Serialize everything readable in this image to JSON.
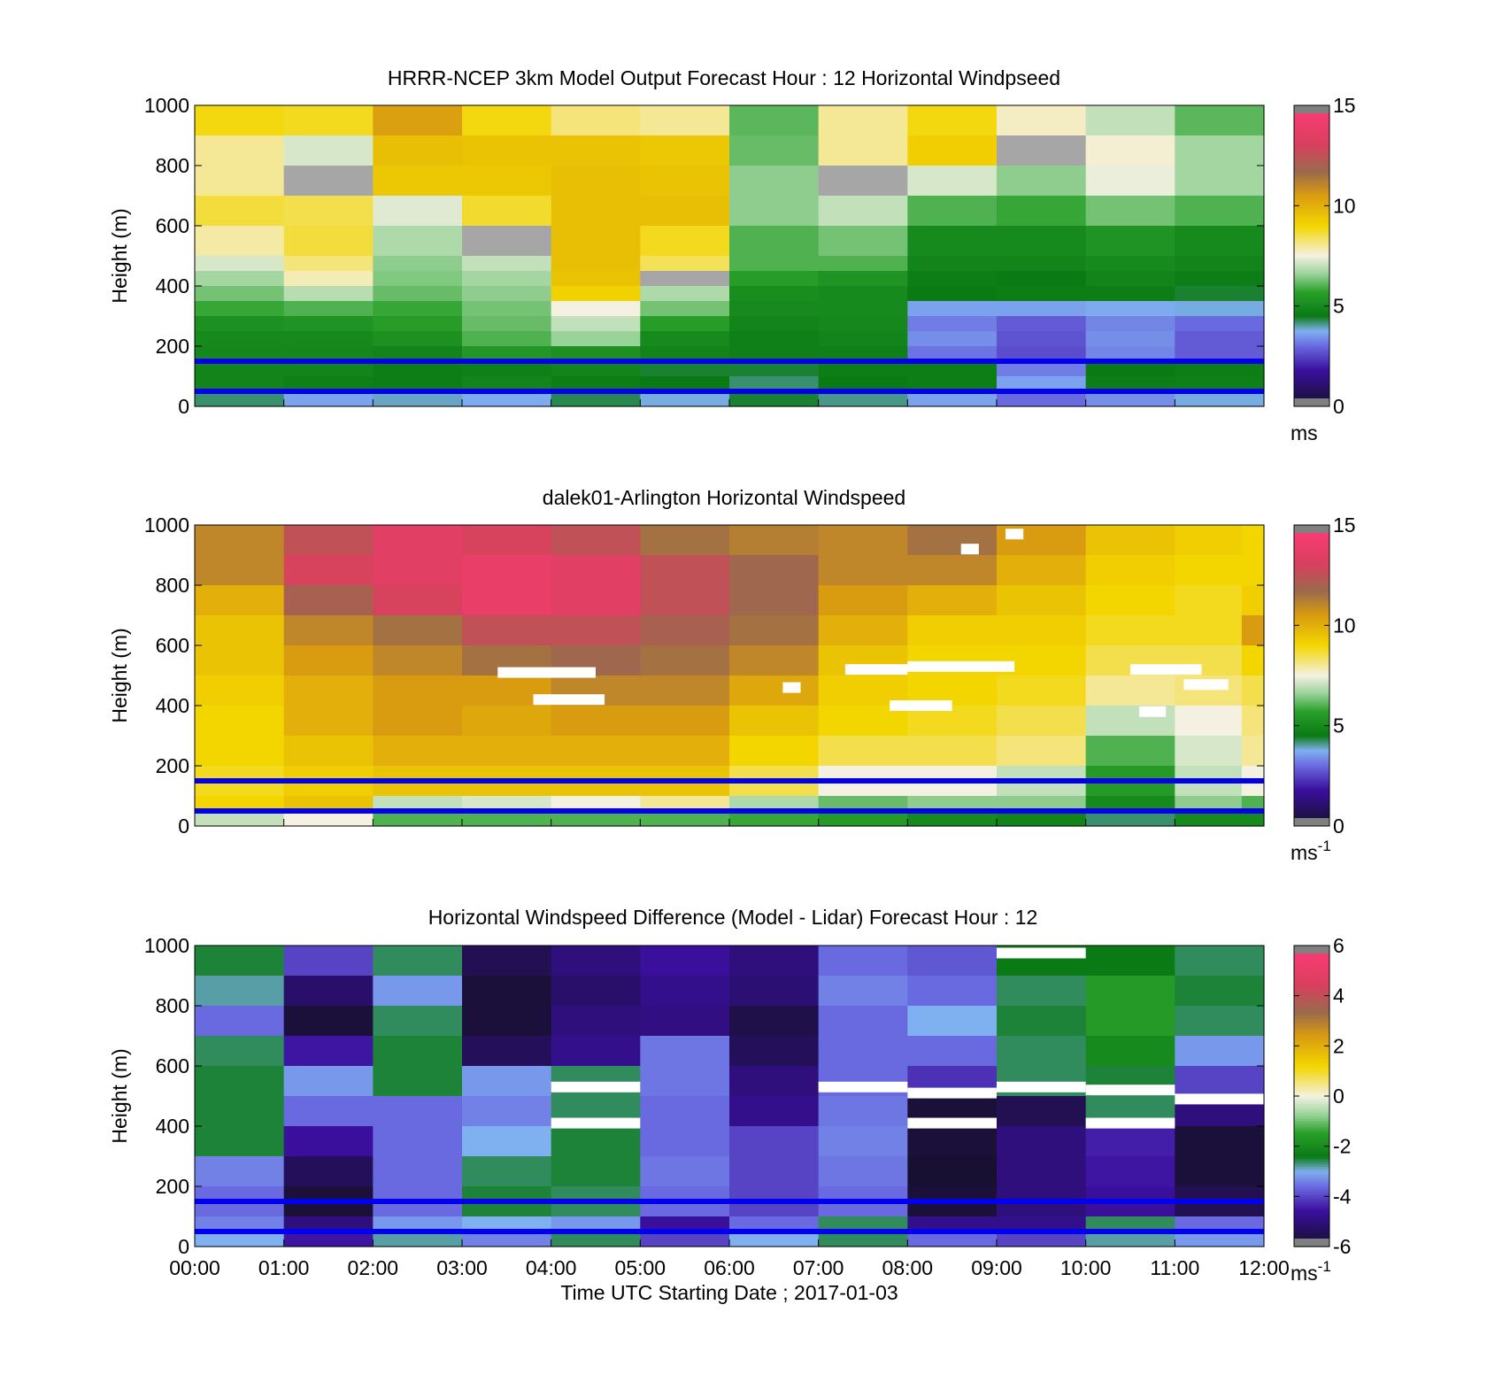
{
  "chart_data": [
    {
      "type": "heatmap",
      "title": "HRRR-NCEP 3km Model Output   Forecast Hour : 12 Horizontal Windpseed",
      "ylabel": "Height (m)",
      "xlabel": "",
      "xlim": [
        0,
        12
      ],
      "ylim": [
        0,
        1000
      ],
      "yticks": [
        0,
        200,
        400,
        600,
        800,
        1000
      ],
      "ytick_labels": [
        "0",
        "200",
        "400",
        "600",
        "800",
        "1000"
      ],
      "colorbar": {
        "min": 0,
        "max": 15,
        "ticks": [
          0,
          5,
          10,
          15
        ],
        "tick_labels": [
          "0",
          "5",
          "10",
          "15"
        ],
        "unit": "ms",
        "unit_sup": ""
      },
      "colormap": "wind",
      "heights": [
        1000,
        900,
        800,
        700,
        600,
        500,
        450,
        400,
        350,
        300,
        250,
        200,
        150,
        100,
        50
      ],
      "times": [
        0,
        1,
        2,
        3,
        4,
        5,
        6,
        7,
        8,
        9,
        10,
        11
      ],
      "values": [
        [
          8.9,
          8.8,
          10.4,
          8.9,
          8.2,
          8.0,
          6.1,
          8.0,
          8.9,
          7.7,
          7.0,
          6.1
        ],
        [
          8.0,
          7.2,
          9.6,
          9.5,
          9.5,
          9.4,
          6.2,
          8.0,
          9.2,
          "nan",
          7.6,
          6.7
        ],
        [
          8.0,
          "nan",
          9.4,
          9.4,
          9.6,
          9.5,
          6.5,
          "nan",
          7.2,
          6.5,
          7.4,
          6.7
        ],
        [
          8.6,
          8.5,
          7.3,
          8.7,
          9.6,
          9.6,
          6.5,
          7.0,
          6.0,
          5.8,
          6.3,
          6.0
        ],
        [
          7.9,
          8.6,
          6.8,
          "nan",
          9.6,
          8.8,
          6.0,
          6.3,
          5.0,
          5.0,
          5.3,
          5.0
        ],
        [
          7.2,
          8.2,
          6.5,
          7.0,
          9.6,
          8.4,
          6.0,
          6.0,
          4.8,
          4.8,
          5.0,
          4.8
        ],
        [
          6.7,
          7.8,
          6.4,
          6.7,
          9.5,
          "nan",
          5.6,
          5.3,
          4.6,
          4.5,
          4.8,
          4.6
        ],
        [
          6.3,
          6.9,
          6.2,
          6.5,
          9.1,
          6.8,
          5.1,
          5.0,
          4.5,
          4.6,
          4.6,
          4.4
        ],
        [
          5.8,
          6.0,
          5.8,
          6.3,
          7.5,
          6.3,
          5.0,
          5.0,
          3.6,
          3.6,
          3.7,
          3.8
        ],
        [
          5.2,
          5.3,
          5.6,
          6.2,
          7.0,
          5.6,
          4.8,
          4.9,
          3.2,
          2.8,
          3.3,
          3.0
        ],
        [
          5.0,
          5.0,
          5.2,
          6.0,
          6.6,
          5.0,
          4.7,
          4.8,
          3.4,
          2.7,
          3.4,
          2.8
        ],
        [
          4.9,
          4.9,
          4.8,
          5.4,
          5.2,
          4.8,
          4.7,
          4.7,
          3.1,
          2.6,
          3.3,
          2.8
        ],
        [
          4.8,
          4.8,
          4.6,
          4.7,
          4.8,
          4.4,
          4.4,
          4.6,
          4.6,
          3.2,
          4.5,
          4.6
        ],
        [
          4.8,
          4.7,
          4.6,
          4.8,
          4.6,
          4.5,
          4.2,
          4.5,
          4.6,
          3.6,
          4.6,
          4.7
        ],
        [
          4.2,
          3.6,
          3.9,
          3.7,
          4.3,
          3.8,
          4.4,
          4.1,
          3.6,
          3.0,
          3.4,
          3.8
        ]
      ],
      "reference_lines": [
        150,
        50
      ]
    },
    {
      "type": "heatmap",
      "title": "dalek01-Arlington  Horizontal Windspeed",
      "ylabel": "Height (m)",
      "xlabel": "",
      "xlim": [
        0,
        12
      ],
      "ylim": [
        0,
        1000
      ],
      "yticks": [
        0,
        200,
        400,
        600,
        800,
        1000
      ],
      "ytick_labels": [
        "0",
        "200",
        "400",
        "600",
        "800",
        "1000"
      ],
      "colorbar": {
        "min": 0,
        "max": 15,
        "ticks": [
          0,
          5,
          10,
          15
        ],
        "tick_labels": [
          "0",
          "5",
          "10",
          "15"
        ],
        "unit": "ms",
        "unit_sup": "-1"
      },
      "colormap": "wind",
      "heights": [
        1000,
        900,
        800,
        700,
        600,
        500,
        400,
        300,
        200,
        100,
        50
      ],
      "times": [
        0,
        1,
        2,
        3,
        4,
        5,
        6,
        7,
        8,
        9,
        10,
        11,
        11.75
      ],
      "values": [
        [
          11.0,
          12.5,
          13.5,
          13.0,
          12.5,
          11.5,
          11.2,
          11.0,
          11.5,
          10.5,
          9.5,
          9.2,
          9.0
        ],
        [
          11.0,
          13.0,
          13.5,
          13.8,
          13.5,
          12.5,
          11.8,
          11.0,
          11.0,
          10.0,
          9.2,
          9.0,
          9.0
        ],
        [
          10.0,
          12.0,
          13.0,
          13.8,
          13.5,
          12.5,
          11.8,
          10.5,
          10.0,
          9.5,
          9.0,
          8.8,
          9.2
        ],
        [
          9.5,
          11.0,
          11.5,
          12.5,
          12.5,
          12.0,
          11.5,
          10.0,
          9.2,
          9.2,
          8.8,
          8.8,
          10.5
        ],
        [
          9.5,
          10.5,
          11.0,
          11.5,
          11.8,
          11.5,
          11.0,
          9.5,
          9.0,
          9.0,
          8.5,
          8.5,
          9.0
        ],
        [
          9.2,
          10.0,
          10.5,
          10.5,
          11.0,
          11.0,
          10.2,
          9.2,
          9.0,
          8.8,
          8.0,
          8.2,
          8.5
        ],
        [
          9.0,
          10.0,
          10.5,
          10.2,
          10.5,
          10.5,
          9.5,
          9.0,
          8.8,
          8.5,
          7.0,
          7.5,
          8.2
        ],
        [
          9.0,
          9.5,
          10.0,
          10.0,
          10.0,
          10.0,
          9.0,
          8.5,
          8.5,
          8.2,
          6.0,
          7.2,
          8.0
        ],
        [
          8.8,
          9.2,
          9.5,
          9.5,
          9.5,
          9.5,
          8.5,
          7.5,
          7.5,
          7.0,
          5.5,
          7.0,
          7.5
        ],
        [
          9.0,
          9.5,
          7.0,
          7.2,
          7.5,
          8.0,
          6.8,
          6.2,
          6.5,
          6.5,
          5.0,
          6.5,
          6.0
        ],
        [
          7.0,
          7.5,
          6.0,
          6.0,
          6.0,
          6.0,
          5.8,
          5.5,
          5.0,
          4.8,
          4.2,
          5.0,
          5.0
        ]
      ],
      "missing_bands": [
        {
          "t0": 3.4,
          "t1": 4.5,
          "h": 510
        },
        {
          "t0": 3.8,
          "t1": 4.6,
          "h": 420
        },
        {
          "t0": 6.6,
          "t1": 6.8,
          "h": 460
        },
        {
          "t0": 7.3,
          "t1": 8.0,
          "h": 520
        },
        {
          "t0": 7.8,
          "t1": 8.5,
          "h": 400
        },
        {
          "t0": 8.0,
          "t1": 9.2,
          "h": 530
        },
        {
          "t0": 8.6,
          "t1": 8.8,
          "h": 920
        },
        {
          "t0": 9.1,
          "t1": 9.3,
          "h": 970
        },
        {
          "t0": 10.5,
          "t1": 11.3,
          "h": 520
        },
        {
          "t0": 10.6,
          "t1": 10.9,
          "h": 380
        },
        {
          "t0": 11.1,
          "t1": 11.6,
          "h": 470
        }
      ],
      "reference_lines": [
        150,
        50
      ]
    },
    {
      "type": "heatmap",
      "title": "Horizontal Windspeed Difference (Model - Lidar) Forecast Hour : 12",
      "ylabel": "Height (m)",
      "xlabel": "Time UTC  Starting Date ; 2017-01-03",
      "xlim": [
        0,
        12
      ],
      "ylim": [
        0,
        1000
      ],
      "yticks": [
        0,
        200,
        400,
        600,
        800,
        1000
      ],
      "ytick_labels": [
        "0",
        "200",
        "400",
        "600",
        "800",
        "1000"
      ],
      "xtick_labels": [
        "00:00",
        "01:00",
        "02:00",
        "03:00",
        "04:00",
        "05:00",
        "06:00",
        "07:00",
        "08:00",
        "09:00",
        "10:00",
        "11:00",
        "12:00"
      ],
      "colorbar": {
        "min": -6,
        "max": 6,
        "ticks": [
          -6,
          -4,
          -2,
          0,
          2,
          4,
          6
        ],
        "tick_labels": [
          "-6",
          "-4",
          "-2",
          "0",
          "2",
          "4",
          "6"
        ],
        "unit": "ms",
        "unit_sup": "-1"
      },
      "colormap": "diff",
      "heights": [
        1000,
        900,
        800,
        700,
        600,
        500,
        400,
        300,
        200,
        100,
        50
      ],
      "times": [
        0,
        1,
        2,
        3,
        4,
        5,
        6,
        7,
        8,
        9,
        10,
        11
      ],
      "values": [
        [
          -2.5,
          -4.0,
          -2.6,
          -5.5,
          -5.0,
          -4.6,
          -5.0,
          -3.6,
          -3.8,
          -2.4,
          -2.4,
          -2.6
        ],
        [
          -2.8,
          -5.2,
          -3.2,
          -5.8,
          -5.2,
          -4.8,
          -5.1,
          -3.4,
          -3.6,
          -2.6,
          -1.6,
          -2.5
        ],
        [
          -3.6,
          -5.8,
          -2.6,
          -5.8,
          -5.0,
          -4.9,
          -5.6,
          -3.6,
          -3.0,
          -2.5,
          -1.6,
          -2.6
        ],
        [
          -2.6,
          -4.5,
          -2.5,
          -5.4,
          -4.8,
          -3.5,
          -5.4,
          -3.6,
          -3.6,
          -2.6,
          -2.0,
          -3.2
        ],
        [
          -2.5,
          -3.2,
          -2.5,
          -3.2,
          -2.6,
          -3.5,
          -5.0,
          -3.6,
          -4.2,
          -2.6,
          -2.5,
          -4.0
        ],
        [
          -2.5,
          -3.6,
          -3.6,
          -3.4,
          -2.6,
          -3.6,
          -4.8,
          -3.5,
          -5.8,
          -5.5,
          -2.6,
          -5.0
        ],
        [
          -2.5,
          -4.6,
          -3.6,
          -3.0,
          -2.5,
          -3.6,
          -4.0,
          -3.4,
          -5.8,
          -5.0,
          -4.4,
          -5.8
        ],
        [
          -3.4,
          -5.4,
          -3.6,
          -2.6,
          -2.5,
          -3.5,
          -4.0,
          -3.5,
          -5.9,
          -5.0,
          -4.5,
          -5.8
        ],
        [
          -3.6,
          -5.8,
          -3.6,
          -2.5,
          -2.6,
          -3.6,
          -4.0,
          -3.6,
          -5.8,
          -5.0,
          -4.6,
          -5.5
        ],
        [
          -3.4,
          -5.0,
          -3.2,
          -3.0,
          -3.2,
          -4.6,
          -3.6,
          -2.6,
          -4.8,
          -4.8,
          -2.6,
          -3.6
        ],
        [
          -3.0,
          -4.5,
          -2.8,
          -3.4,
          -2.6,
          -4.0,
          -3.0,
          -2.6,
          -3.6,
          -4.0,
          -2.8,
          -3.2
        ]
      ],
      "missing_bands": [
        {
          "t0": 4,
          "t1": 5,
          "h": 530
        },
        {
          "t0": 4,
          "t1": 5,
          "h": 410
        },
        {
          "t0": 7,
          "t1": 8,
          "h": 530
        },
        {
          "t0": 8,
          "t1": 9,
          "h": 510
        },
        {
          "t0": 8,
          "t1": 9,
          "h": 410
        },
        {
          "t0": 9,
          "t1": 10,
          "h": 975
        },
        {
          "t0": 9,
          "t1": 10,
          "h": 530
        },
        {
          "t0": 10,
          "t1": 11,
          "h": 520
        },
        {
          "t0": 10,
          "t1": 11,
          "h": 410
        },
        {
          "t0": 11,
          "t1": 12,
          "h": 490
        }
      ],
      "reference_lines": [
        150,
        50
      ]
    }
  ],
  "colors": {
    "reference_line": "#0000ee",
    "colorbar_cap": "#808080",
    "missing": "#a6a6a6"
  }
}
